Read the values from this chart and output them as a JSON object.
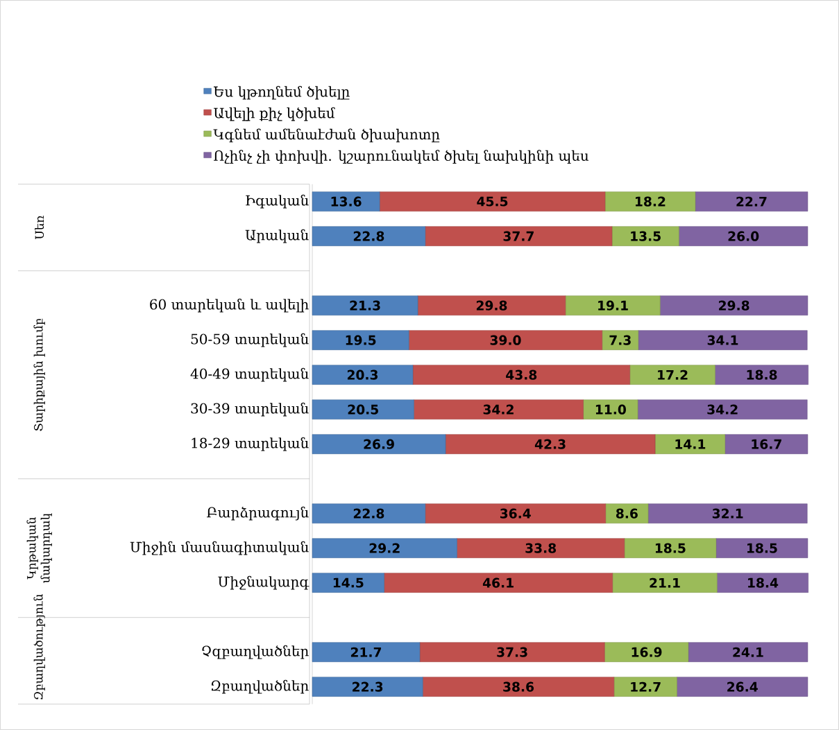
{
  "chart_data": {
    "type": "bar",
    "orientation": "horizontal",
    "stacked": true,
    "legend": "top",
    "categories": [
      "Իգական",
      "Արական",
      null,
      "60 տարեկան և ավելի",
      "50-59 տարեկան",
      "40-49 տարեկան",
      "30-39 տարեկան",
      "18-29 տարեկան",
      null,
      "Բարձրագույն",
      "Միջին մասնագիտական",
      "Միջնակարգ",
      null,
      "Չզբաղվածներ",
      "Զբաղվածներ"
    ],
    "annotations": [
      "Սեռ",
      "Տարիքային խումբ",
      "Կրթական մակարդակ",
      "Զբաղվածություն"
    ],
    "series": [
      {
        "name": "Ես կթողնեմ ծխելը",
        "color": "#4f81bd",
        "values": [
          13.6,
          22.8,
          null,
          21.3,
          19.5,
          20.3,
          20.5,
          26.9,
          null,
          22.8,
          29.2,
          14.5,
          null,
          21.7,
          22.3
        ],
        "value_labels": [
          "13.6",
          "22.8",
          null,
          "21.3",
          "19.5",
          "20.3",
          "20.5",
          "26.9",
          null,
          "22.8",
          "29.2",
          "14.5",
          null,
          "21.7",
          "22.3"
        ]
      },
      {
        "name": "Ավելի քիչ կծխեմ",
        "color": "#c0504d",
        "values": [
          45.5,
          37.7,
          null,
          29.8,
          39.0,
          43.8,
          34.2,
          42.3,
          null,
          36.4,
          33.8,
          46.1,
          null,
          37.3,
          38.6
        ],
        "value_labels": [
          "45.5",
          "37.7",
          null,
          "29.8",
          "39.0",
          "43.8",
          "34.2",
          "42.3",
          null,
          "36.4",
          "33.8",
          "46.1",
          null,
          "37.3",
          "38.6"
        ]
      },
      {
        "name": "Կգնեմ ամենաէժան ծխախոտը",
        "color": "#9bbb59",
        "values": [
          18.2,
          13.5,
          null,
          19.1,
          7.3,
          17.2,
          11.0,
          14.1,
          null,
          8.6,
          18.5,
          21.1,
          null,
          16.9,
          12.7
        ],
        "value_labels": [
          "18.2",
          "13.5",
          null,
          "19.1",
          "7.3",
          "17.2",
          "11.0",
          "14.1",
          null,
          "8.6",
          "18.5",
          "21.1",
          null,
          "16.9",
          "12.7"
        ]
      },
      {
        "name": "Ոչինչ չի փոխվի. կշարունակեմ ծխել նախկինի պես",
        "color": "#8064a2",
        "values": [
          22.7,
          26.0,
          null,
          29.8,
          34.1,
          18.8,
          34.2,
          16.7,
          null,
          32.1,
          18.5,
          18.4,
          null,
          24.1,
          26.4
        ],
        "value_labels": [
          "22.7",
          "26.0",
          null,
          "29.8",
          "34.1",
          "18.8",
          "34.2",
          "16.7",
          null,
          "32.1",
          "18.5",
          "18.4",
          null,
          "24.1",
          "26.4"
        ]
      }
    ]
  }
}
